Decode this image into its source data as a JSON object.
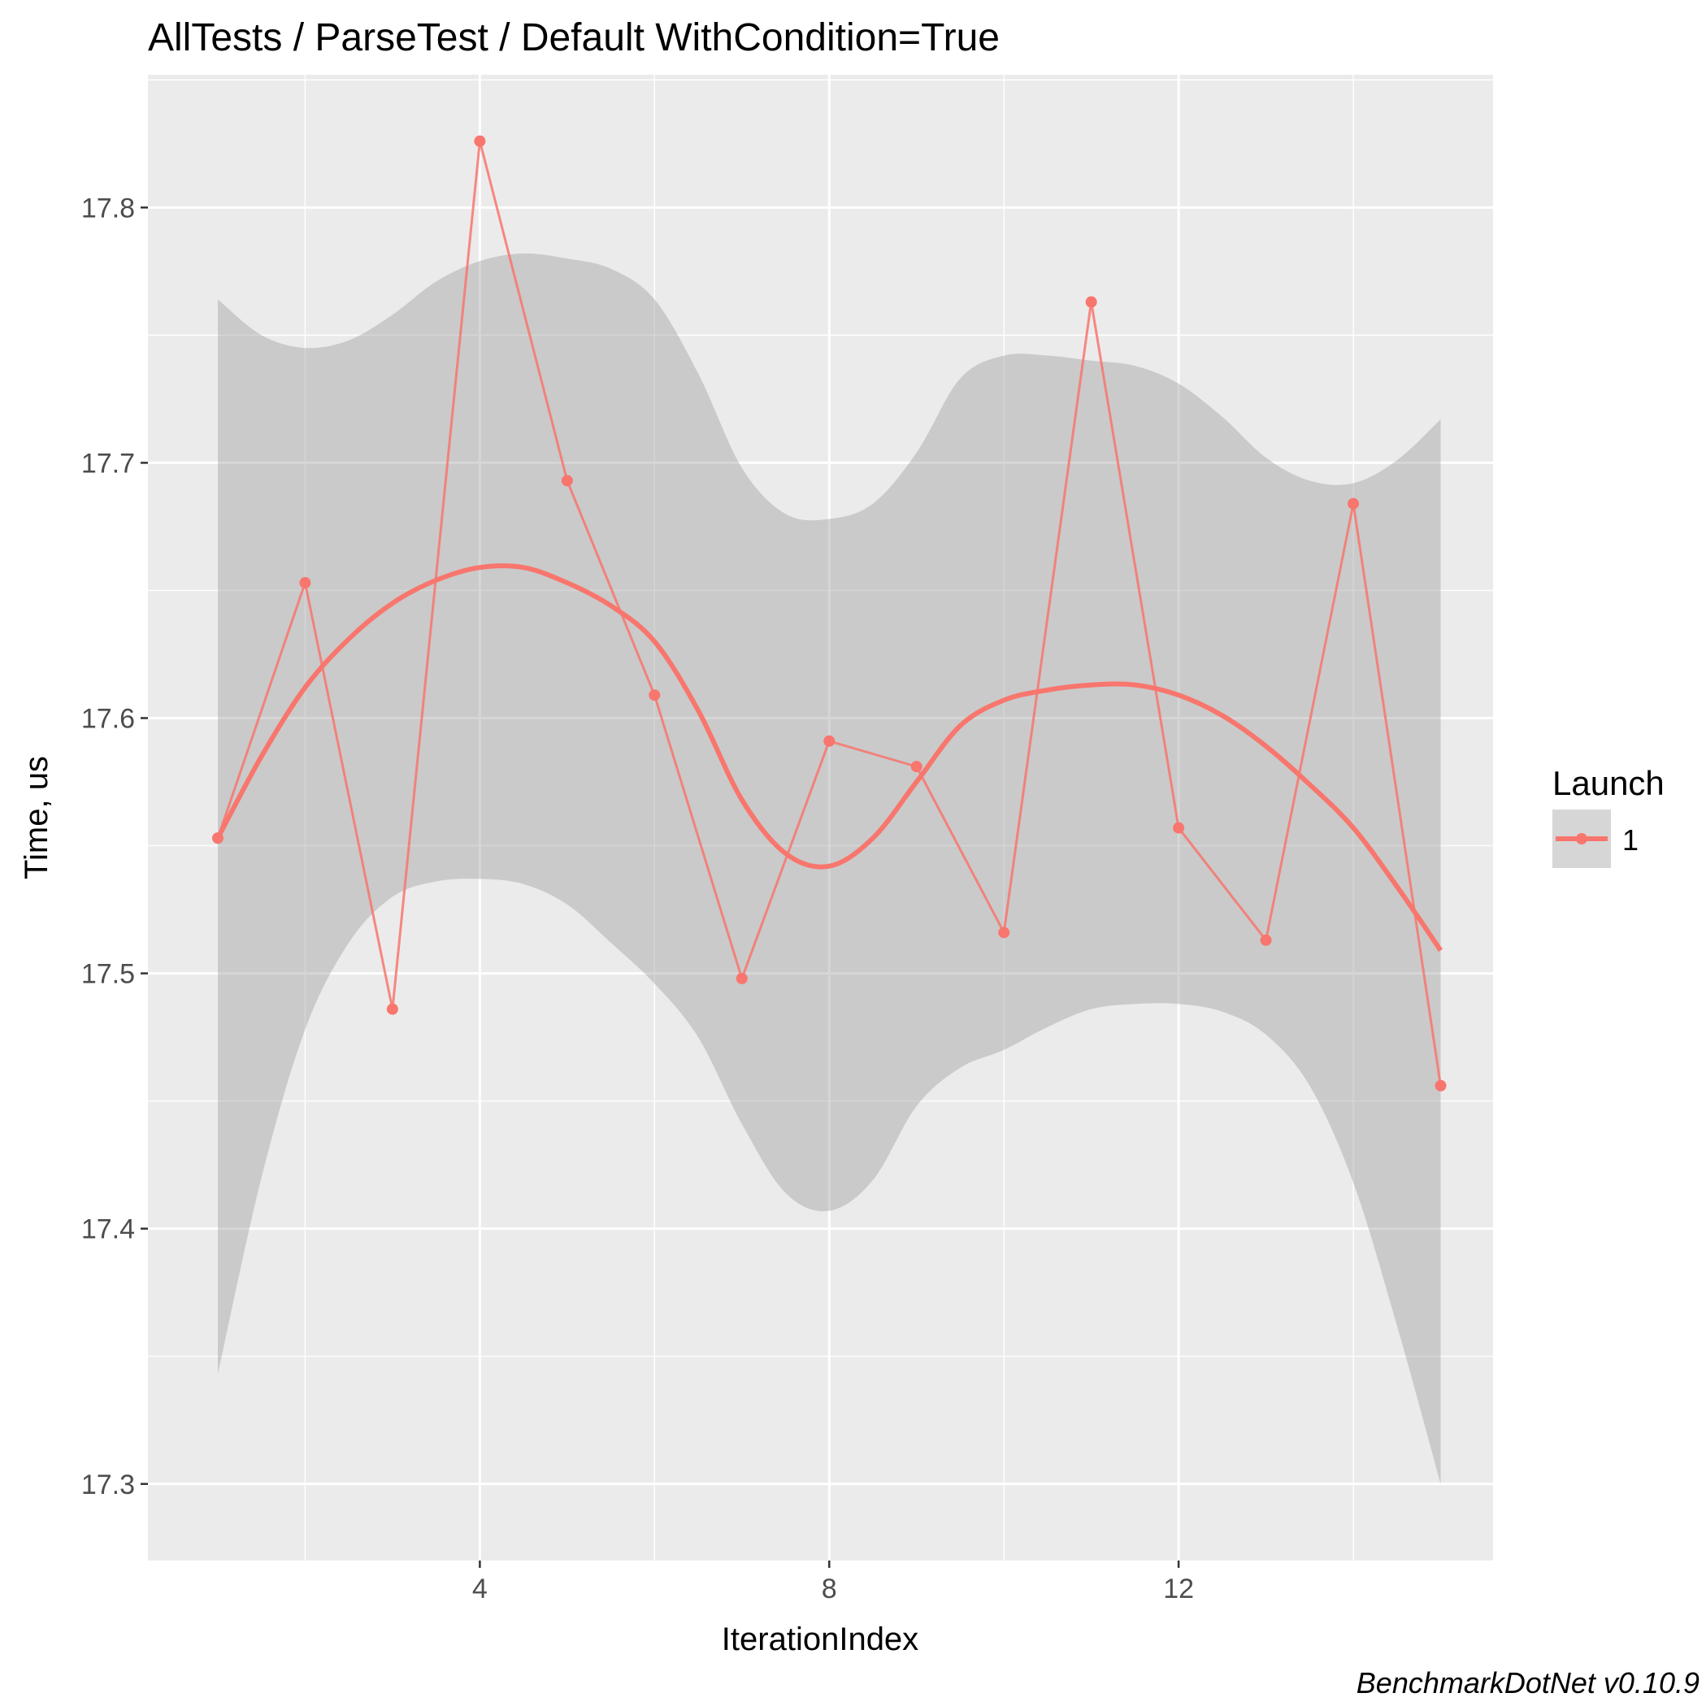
{
  "chart_data": {
    "type": "line",
    "title": "AllTests / ParseTest / Default WithCondition=True",
    "xlabel": "IterationIndex",
    "ylabel": "Time, us",
    "xlim": [
      0.2,
      15.6
    ],
    "ylim": [
      17.27,
      17.852
    ],
    "x_ticks": [
      4,
      8,
      12
    ],
    "x_tick_labels": [
      "4",
      "8",
      "12"
    ],
    "y_ticks": [
      17.3,
      17.4,
      17.5,
      17.6,
      17.7,
      17.8
    ],
    "y_tick_labels": [
      "17.3",
      "17.4",
      "17.5",
      "17.6",
      "17.7",
      "17.8"
    ],
    "grid": true,
    "legend": {
      "title": "Launch",
      "position": "right",
      "entries": [
        "1"
      ]
    },
    "series": [
      {
        "name": "1",
        "color": "#F8766D",
        "x": [
          1,
          2,
          3,
          4,
          5,
          6,
          7,
          8,
          9,
          10,
          11,
          12,
          13,
          14,
          15
        ],
        "values": [
          17.553,
          17.653,
          17.486,
          17.826,
          17.693,
          17.609,
          17.498,
          17.591,
          17.581,
          17.516,
          17.763,
          17.557,
          17.513,
          17.684,
          17.456
        ]
      }
    ],
    "smooth": {
      "x": [
        1,
        1.5,
        2,
        2.5,
        3,
        3.5,
        4,
        4.5,
        5,
        5.5,
        6,
        6.5,
        7,
        7.5,
        8,
        8.5,
        9,
        9.5,
        10,
        10.5,
        11,
        11.5,
        12,
        12.5,
        13,
        13.5,
        14,
        14.5,
        15
      ],
      "fit": [
        17.553,
        17.585,
        17.612,
        17.631,
        17.645,
        17.654,
        17.659,
        17.659,
        17.653,
        17.644,
        17.63,
        17.603,
        17.568,
        17.547,
        17.542,
        17.553,
        17.575,
        17.597,
        17.607,
        17.611,
        17.613,
        17.613,
        17.609,
        17.601,
        17.589,
        17.574,
        17.557,
        17.534,
        17.509
      ],
      "upper": [
        17.764,
        17.75,
        17.745,
        17.748,
        17.758,
        17.771,
        17.779,
        17.782,
        17.78,
        17.776,
        17.764,
        17.735,
        17.698,
        17.68,
        17.678,
        17.684,
        17.704,
        17.733,
        17.742,
        17.742,
        17.74,
        17.738,
        17.731,
        17.718,
        17.702,
        17.693,
        17.692,
        17.701,
        17.717
      ],
      "lower": [
        17.343,
        17.42,
        17.478,
        17.512,
        17.53,
        17.536,
        17.537,
        17.535,
        17.527,
        17.512,
        17.496,
        17.475,
        17.441,
        17.414,
        17.407,
        17.419,
        17.448,
        17.463,
        17.47,
        17.479,
        17.486,
        17.488,
        17.488,
        17.485,
        17.476,
        17.456,
        17.418,
        17.362,
        17.3
      ]
    }
  },
  "annotation": "BenchmarkDotNet v0.10.9"
}
